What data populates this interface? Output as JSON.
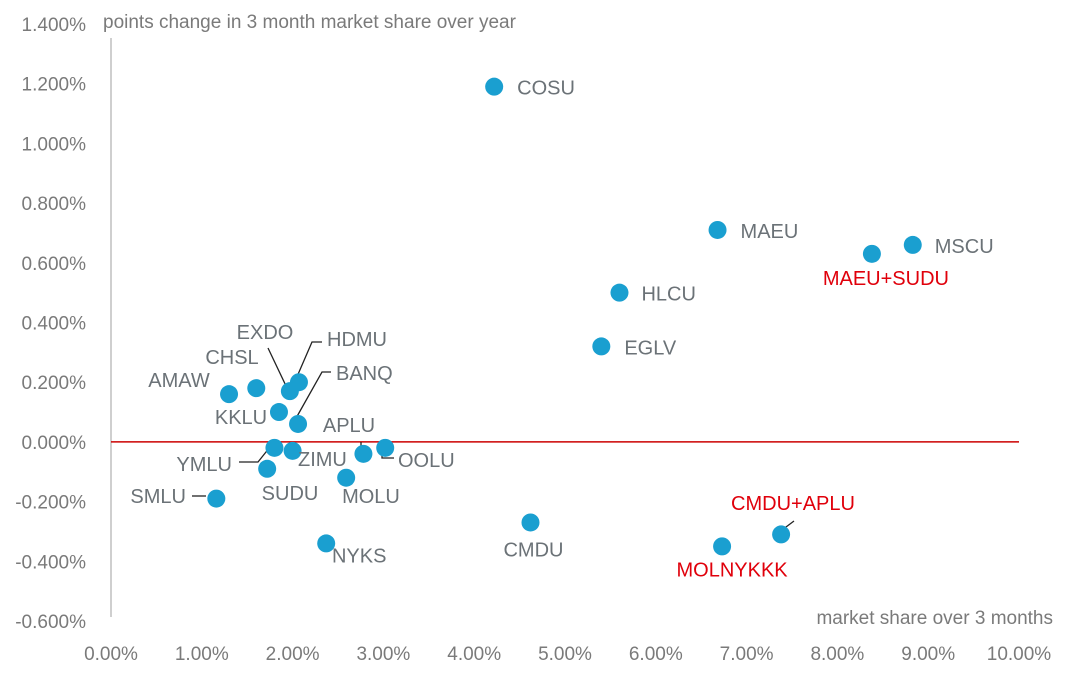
{
  "chart_data": {
    "type": "scatter",
    "title": "",
    "xlabel": "market share over 3 months",
    "ylabel": "points change in 3 month market share over year",
    "xlim": [
      0,
      10
    ],
    "ylim": [
      -0.6,
      1.4
    ],
    "x_ticks": [
      "0.00%",
      "1.00%",
      "2.00%",
      "3.00%",
      "4.00%",
      "5.00%",
      "6.00%",
      "7.00%",
      "8.00%",
      "9.00%",
      "10.00%"
    ],
    "y_ticks": [
      "-0.600%",
      "-0.400%",
      "-0.200%",
      "0.000%",
      "0.200%",
      "0.400%",
      "0.600%",
      "0.800%",
      "1.000%",
      "1.200%",
      "1.400%"
    ],
    "zero_line_color": "#cc0000",
    "point_color": "#1a9fd0",
    "label_color": "#6b7277",
    "highlight_color": "#e0000b",
    "points": [
      {
        "label": "COSU",
        "x": 4.22,
        "y": 1.19,
        "highlight": false
      },
      {
        "label": "MAEU",
        "x": 6.68,
        "y": 0.71,
        "highlight": false
      },
      {
        "label": "MSCU",
        "x": 8.83,
        "y": 0.66,
        "highlight": false
      },
      {
        "label": "MAEU+SUDU",
        "x": 8.38,
        "y": 0.63,
        "highlight": true
      },
      {
        "label": "HLCU",
        "x": 5.6,
        "y": 0.5,
        "highlight": false
      },
      {
        "label": "EGLV",
        "x": 5.4,
        "y": 0.32,
        "highlight": false
      },
      {
        "label": "HDMU",
        "x": 2.07,
        "y": 0.2,
        "highlight": false
      },
      {
        "label": "EXDO",
        "x": 1.97,
        "y": 0.17,
        "highlight": false
      },
      {
        "label": "CHSL",
        "x": 1.6,
        "y": 0.18,
        "highlight": false
      },
      {
        "label": "AMAW",
        "x": 1.3,
        "y": 0.16,
        "highlight": false
      },
      {
        "label": "BANQ",
        "x": 2.06,
        "y": 0.06,
        "highlight": false
      },
      {
        "label": "KKLU",
        "x": 1.85,
        "y": 0.1,
        "highlight": false
      },
      {
        "label": "APLU",
        "x": 2.78,
        "y": -0.04,
        "highlight": false
      },
      {
        "label": "OOLU",
        "x": 3.02,
        "y": -0.02,
        "highlight": false
      },
      {
        "label": "ZIMU",
        "x": 2.0,
        "y": -0.03,
        "highlight": false
      },
      {
        "label": "YMLU",
        "x": 1.8,
        "y": -0.02,
        "highlight": false
      },
      {
        "label": "SUDU",
        "x": 1.72,
        "y": -0.09,
        "highlight": false
      },
      {
        "label": "MOLU",
        "x": 2.59,
        "y": -0.12,
        "highlight": false
      },
      {
        "label": "SMLU",
        "x": 1.16,
        "y": -0.19,
        "highlight": false
      },
      {
        "label": "NYKS",
        "x": 2.37,
        "y": -0.34,
        "highlight": false
      },
      {
        "label": "CMDU",
        "x": 4.62,
        "y": -0.27,
        "highlight": false
      },
      {
        "label": "CMDU+APLU",
        "x": 7.38,
        "y": -0.31,
        "highlight": true
      },
      {
        "label": "MOLNYKKK",
        "x": 6.73,
        "y": -0.35,
        "highlight": true
      }
    ]
  }
}
